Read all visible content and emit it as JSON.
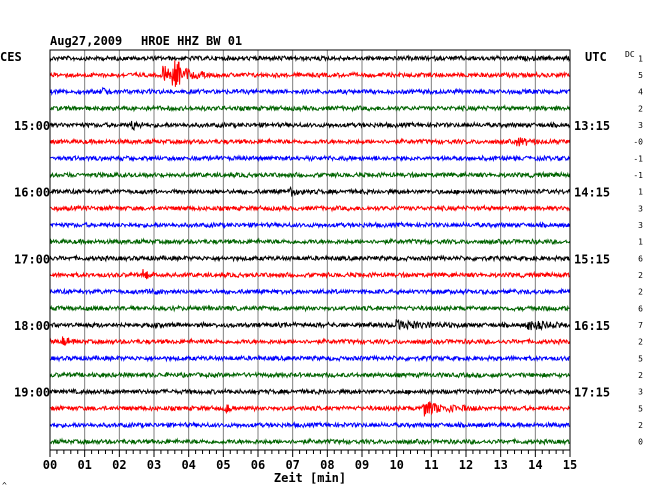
{
  "header": {
    "date": "Aug27,2009",
    "station": "HROE HHZ BW 01"
  },
  "timezones": {
    "left": "CES",
    "right": "UTC",
    "dc": "DC"
  },
  "xaxis": {
    "label": "Zeit [min]"
  },
  "footer_mark": "^",
  "colors": {
    "cycle": [
      "#000000",
      "#ff0000",
      "#0000ff",
      "#006400"
    ],
    "grid": "#7f7f7f",
    "frame": "#000000"
  },
  "chart_data": {
    "type": "line",
    "title": "Aug27,2009   HROE HHZ BW 01",
    "xlabel": "Zeit [min]",
    "ylabel": "",
    "xlim": [
      0,
      15
    ],
    "x_ticks": [
      "00",
      "01",
      "02",
      "03",
      "04",
      "05",
      "06",
      "07",
      "08",
      "09",
      "10",
      "11",
      "12",
      "13",
      "14",
      "15"
    ],
    "minutes_per_trace": 15,
    "trace_count": 24,
    "grid": true,
    "left_time_labels": [
      {
        "trace": 4,
        "label": "15:00"
      },
      {
        "trace": 8,
        "label": "16:00"
      },
      {
        "trace": 12,
        "label": "17:00"
      },
      {
        "trace": 16,
        "label": "18:00"
      },
      {
        "trace": 20,
        "label": "19:00"
      }
    ],
    "right_time_labels": [
      {
        "trace": 4,
        "label": "13:15"
      },
      {
        "trace": 8,
        "label": "14:15"
      },
      {
        "trace": 12,
        "label": "15:15"
      },
      {
        "trace": 16,
        "label": "16:15"
      },
      {
        "trace": 20,
        "label": "17:15"
      }
    ],
    "dc_offsets": [
      "1",
      "5",
      "4",
      "2",
      "3",
      "-0",
      "-1",
      "-1",
      "1",
      "3",
      "3",
      "1",
      "6",
      "2",
      "2",
      "6",
      "7",
      "2",
      "5",
      "2",
      "3",
      "5",
      "2",
      "0"
    ],
    "events": [
      {
        "trace": 1,
        "minute": 3.55,
        "amplitude": "large",
        "duration_min": 1.0
      },
      {
        "trace": 1,
        "minute": 3.3,
        "amplitude": "medium",
        "duration_min": 0.5
      },
      {
        "trace": 2,
        "minute": 1.55,
        "amplitude": "small",
        "duration_min": 0.4
      },
      {
        "trace": 4,
        "minute": 2.4,
        "amplitude": "small",
        "duration_min": 0.5
      },
      {
        "trace": 5,
        "minute": 13.5,
        "amplitude": "small",
        "duration_min": 0.8
      },
      {
        "trace": 8,
        "minute": 6.9,
        "amplitude": "small",
        "duration_min": 0.8
      },
      {
        "trace": 13,
        "minute": 2.7,
        "amplitude": "small",
        "duration_min": 0.7
      },
      {
        "trace": 14,
        "minute": 2.9,
        "amplitude": "small",
        "duration_min": 0.4
      },
      {
        "trace": 16,
        "minute": 13.8,
        "amplitude": "small",
        "duration_min": 1.5
      },
      {
        "trace": 16,
        "minute": 10.0,
        "amplitude": "small",
        "duration_min": 2.0
      },
      {
        "trace": 17,
        "minute": 0.4,
        "amplitude": "small",
        "duration_min": 0.4
      },
      {
        "trace": 21,
        "minute": 10.8,
        "amplitude": "medium",
        "duration_min": 1.6
      },
      {
        "trace": 21,
        "minute": 5.1,
        "amplitude": "small",
        "duration_min": 0.2
      }
    ]
  }
}
